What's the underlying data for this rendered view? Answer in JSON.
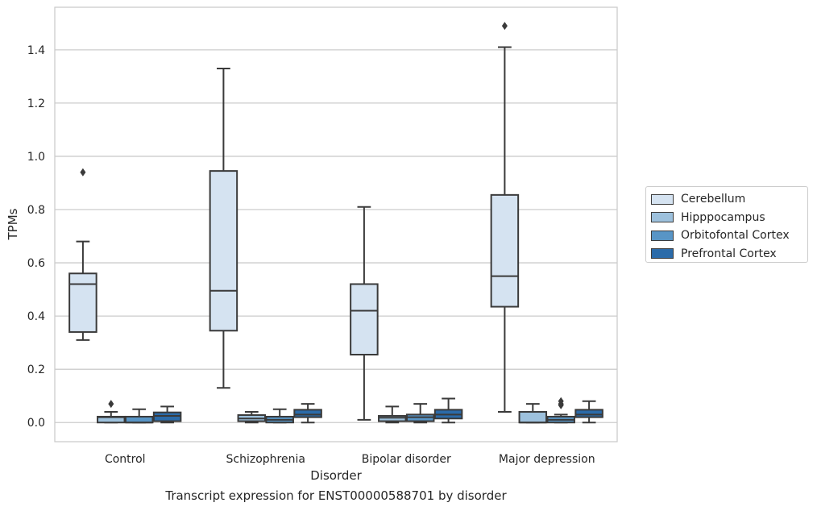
{
  "chart_data": {
    "type": "box",
    "xlabel": "Disorder",
    "ylabel": "TPMs",
    "categories": [
      "Control",
      "Schizophrenia",
      "Bipolar disorder",
      "Major depression"
    ],
    "ylim": [
      -0.072,
      1.56
    ],
    "yticks": [
      "0.0",
      "0.2",
      "0.4",
      "0.6",
      "0.8",
      "1.0",
      "1.2",
      "1.4"
    ],
    "grid": "horizontal",
    "legend_position": "right",
    "series": [
      {
        "name": "Cerebellum",
        "color": "#d5e3f1",
        "boxes": [
          {
            "whislo": 0.31,
            "q1": 0.34,
            "med": 0.52,
            "q3": 0.56,
            "whishi": 0.68,
            "fliers": [
              0.94
            ]
          },
          {
            "whislo": 0.13,
            "q1": 0.345,
            "med": 0.495,
            "q3": 0.945,
            "whishi": 1.33,
            "fliers": []
          },
          {
            "whislo": 0.01,
            "q1": 0.255,
            "med": 0.42,
            "q3": 0.52,
            "whishi": 0.81,
            "fliers": []
          },
          {
            "whislo": 0.04,
            "q1": 0.435,
            "med": 0.55,
            "q3": 0.855,
            "whishi": 1.41,
            "fliers": [
              1.49
            ]
          }
        ]
      },
      {
        "name": "Hipppocampus",
        "color": "#9dc1dd",
        "boxes": [
          {
            "whislo": 0.0,
            "q1": 0.0,
            "med": 0.02,
            "q3": 0.022,
            "whishi": 0.04,
            "fliers": [
              0.07
            ]
          },
          {
            "whislo": 0.0,
            "q1": 0.005,
            "med": 0.015,
            "q3": 0.028,
            "whishi": 0.04,
            "fliers": []
          },
          {
            "whislo": 0.0,
            "q1": 0.005,
            "med": 0.018,
            "q3": 0.025,
            "whishi": 0.06,
            "fliers": []
          },
          {
            "whislo": 0.0,
            "q1": 0.0,
            "med": 0.0,
            "q3": 0.04,
            "whishi": 0.07,
            "fliers": []
          }
        ]
      },
      {
        "name": "Orbitofontal Cortex",
        "color": "#5895c6",
        "boxes": [
          {
            "whislo": 0.0,
            "q1": 0.0,
            "med": 0.0,
            "q3": 0.022,
            "whishi": 0.05,
            "fliers": []
          },
          {
            "whislo": 0.0,
            "q1": 0.0,
            "med": 0.01,
            "q3": 0.022,
            "whishi": 0.05,
            "fliers": []
          },
          {
            "whislo": 0.0,
            "q1": 0.005,
            "med": 0.02,
            "q3": 0.03,
            "whishi": 0.07,
            "fliers": []
          },
          {
            "whislo": 0.0,
            "q1": 0.0,
            "med": 0.01,
            "q3": 0.022,
            "whishi": 0.03,
            "fliers": [
              0.065,
              0.07,
              0.08
            ]
          }
        ]
      },
      {
        "name": "Prefrontal Cortex",
        "color": "#2b6ba9",
        "boxes": [
          {
            "whislo": 0.0,
            "q1": 0.005,
            "med": 0.025,
            "q3": 0.038,
            "whishi": 0.06,
            "fliers": []
          },
          {
            "whislo": 0.0,
            "q1": 0.02,
            "med": 0.03,
            "q3": 0.048,
            "whishi": 0.07,
            "fliers": []
          },
          {
            "whislo": 0.0,
            "q1": 0.015,
            "med": 0.03,
            "q3": 0.048,
            "whishi": 0.09,
            "fliers": []
          },
          {
            "whislo": 0.0,
            "q1": 0.02,
            "med": 0.03,
            "q3": 0.048,
            "whishi": 0.08,
            "fliers": []
          }
        ]
      }
    ]
  },
  "caption": "Transcript expression for ENST00000588701 by disorder"
}
